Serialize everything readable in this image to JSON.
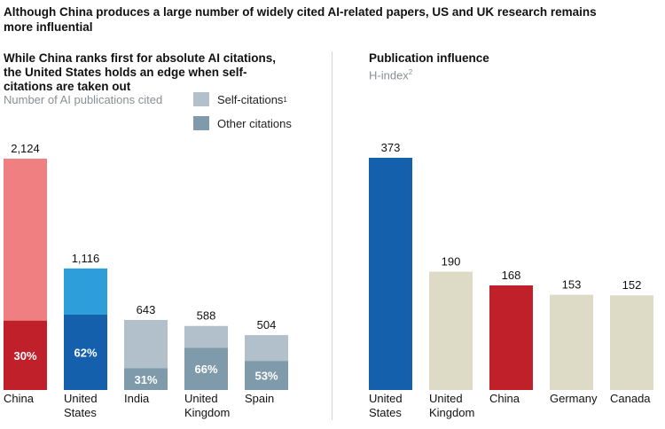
{
  "headline": "Although China produces a large number of widely cited AI-related papers, US and UK research remains more influential",
  "left_panel": {
    "title": "While China ranks first for absolute AI citations, the United States holds an edge when self-citations are taken out",
    "unit": "Number of AI publications cited",
    "legend": [
      {
        "label": "Self-citations",
        "footnote": "1",
        "color": "#b1c0cb"
      },
      {
        "label": "Other citations",
        "footnote": "",
        "color": "#7f9aaa"
      }
    ]
  },
  "right_panel": {
    "title": "Publication influence",
    "unit": "H-index",
    "unit_footnote": "2"
  },
  "chart_data": [
    {
      "type": "bar",
      "stacked": true,
      "title": "While China ranks first for absolute AI citations, the United States holds an edge when self-citations are taken out",
      "ylabel": "Number of AI publications cited",
      "categories": [
        "China",
        "United States",
        "India",
        "United Kingdom",
        "Spain"
      ],
      "category_lines": [
        [
          "China"
        ],
        [
          "United",
          "States"
        ],
        [
          "India"
        ],
        [
          "United",
          "Kingdom"
        ],
        [
          "Spain"
        ]
      ],
      "totals": [
        2124,
        1116,
        643,
        588,
        504
      ],
      "total_labels": [
        "2,124",
        "1,116",
        "643",
        "588",
        "504"
      ],
      "other_citations_share_pct": [
        30,
        62,
        31,
        66,
        53
      ],
      "share_labels": [
        "30%",
        "62%",
        "31%",
        "66%",
        "53%"
      ],
      "series": [
        {
          "name": "Other citations",
          "color": "#7f9aaa"
        },
        {
          "name": "Self-citations",
          "color": "#b1c0cb"
        }
      ],
      "bar_colors": {
        "China": {
          "bottom": "#c0202a",
          "top": "#ef7f80"
        },
        "United States": {
          "bottom": "#1560ad",
          "top": "#2d9ed9"
        },
        "India": {
          "bottom": "#7f9aaa",
          "top": "#b1c0cb"
        },
        "United Kingdom": {
          "bottom": "#7f9aaa",
          "top": "#b1c0cb"
        },
        "Spain": {
          "bottom": "#7f9aaa",
          "top": "#b1c0cb"
        }
      },
      "ylim": [
        0,
        2124
      ],
      "grid": false,
      "legend": "top-right"
    },
    {
      "type": "bar",
      "title": "Publication influence",
      "ylabel": "H-index",
      "categories": [
        "United States",
        "United Kingdom",
        "China",
        "Germany",
        "Canada"
      ],
      "category_lines": [
        [
          "United",
          "States"
        ],
        [
          "United",
          "Kingdom"
        ],
        [
          "China"
        ],
        [
          "Germany"
        ],
        [
          "Canada"
        ]
      ],
      "values": [
        373,
        190,
        168,
        153,
        152
      ],
      "value_labels": [
        "373",
        "190",
        "168",
        "153",
        "152"
      ],
      "colors": [
        "#1560ad",
        "#dddac6",
        "#c0202a",
        "#dddac6",
        "#dddac6"
      ],
      "ylim": [
        0,
        373
      ],
      "grid": false
    }
  ]
}
